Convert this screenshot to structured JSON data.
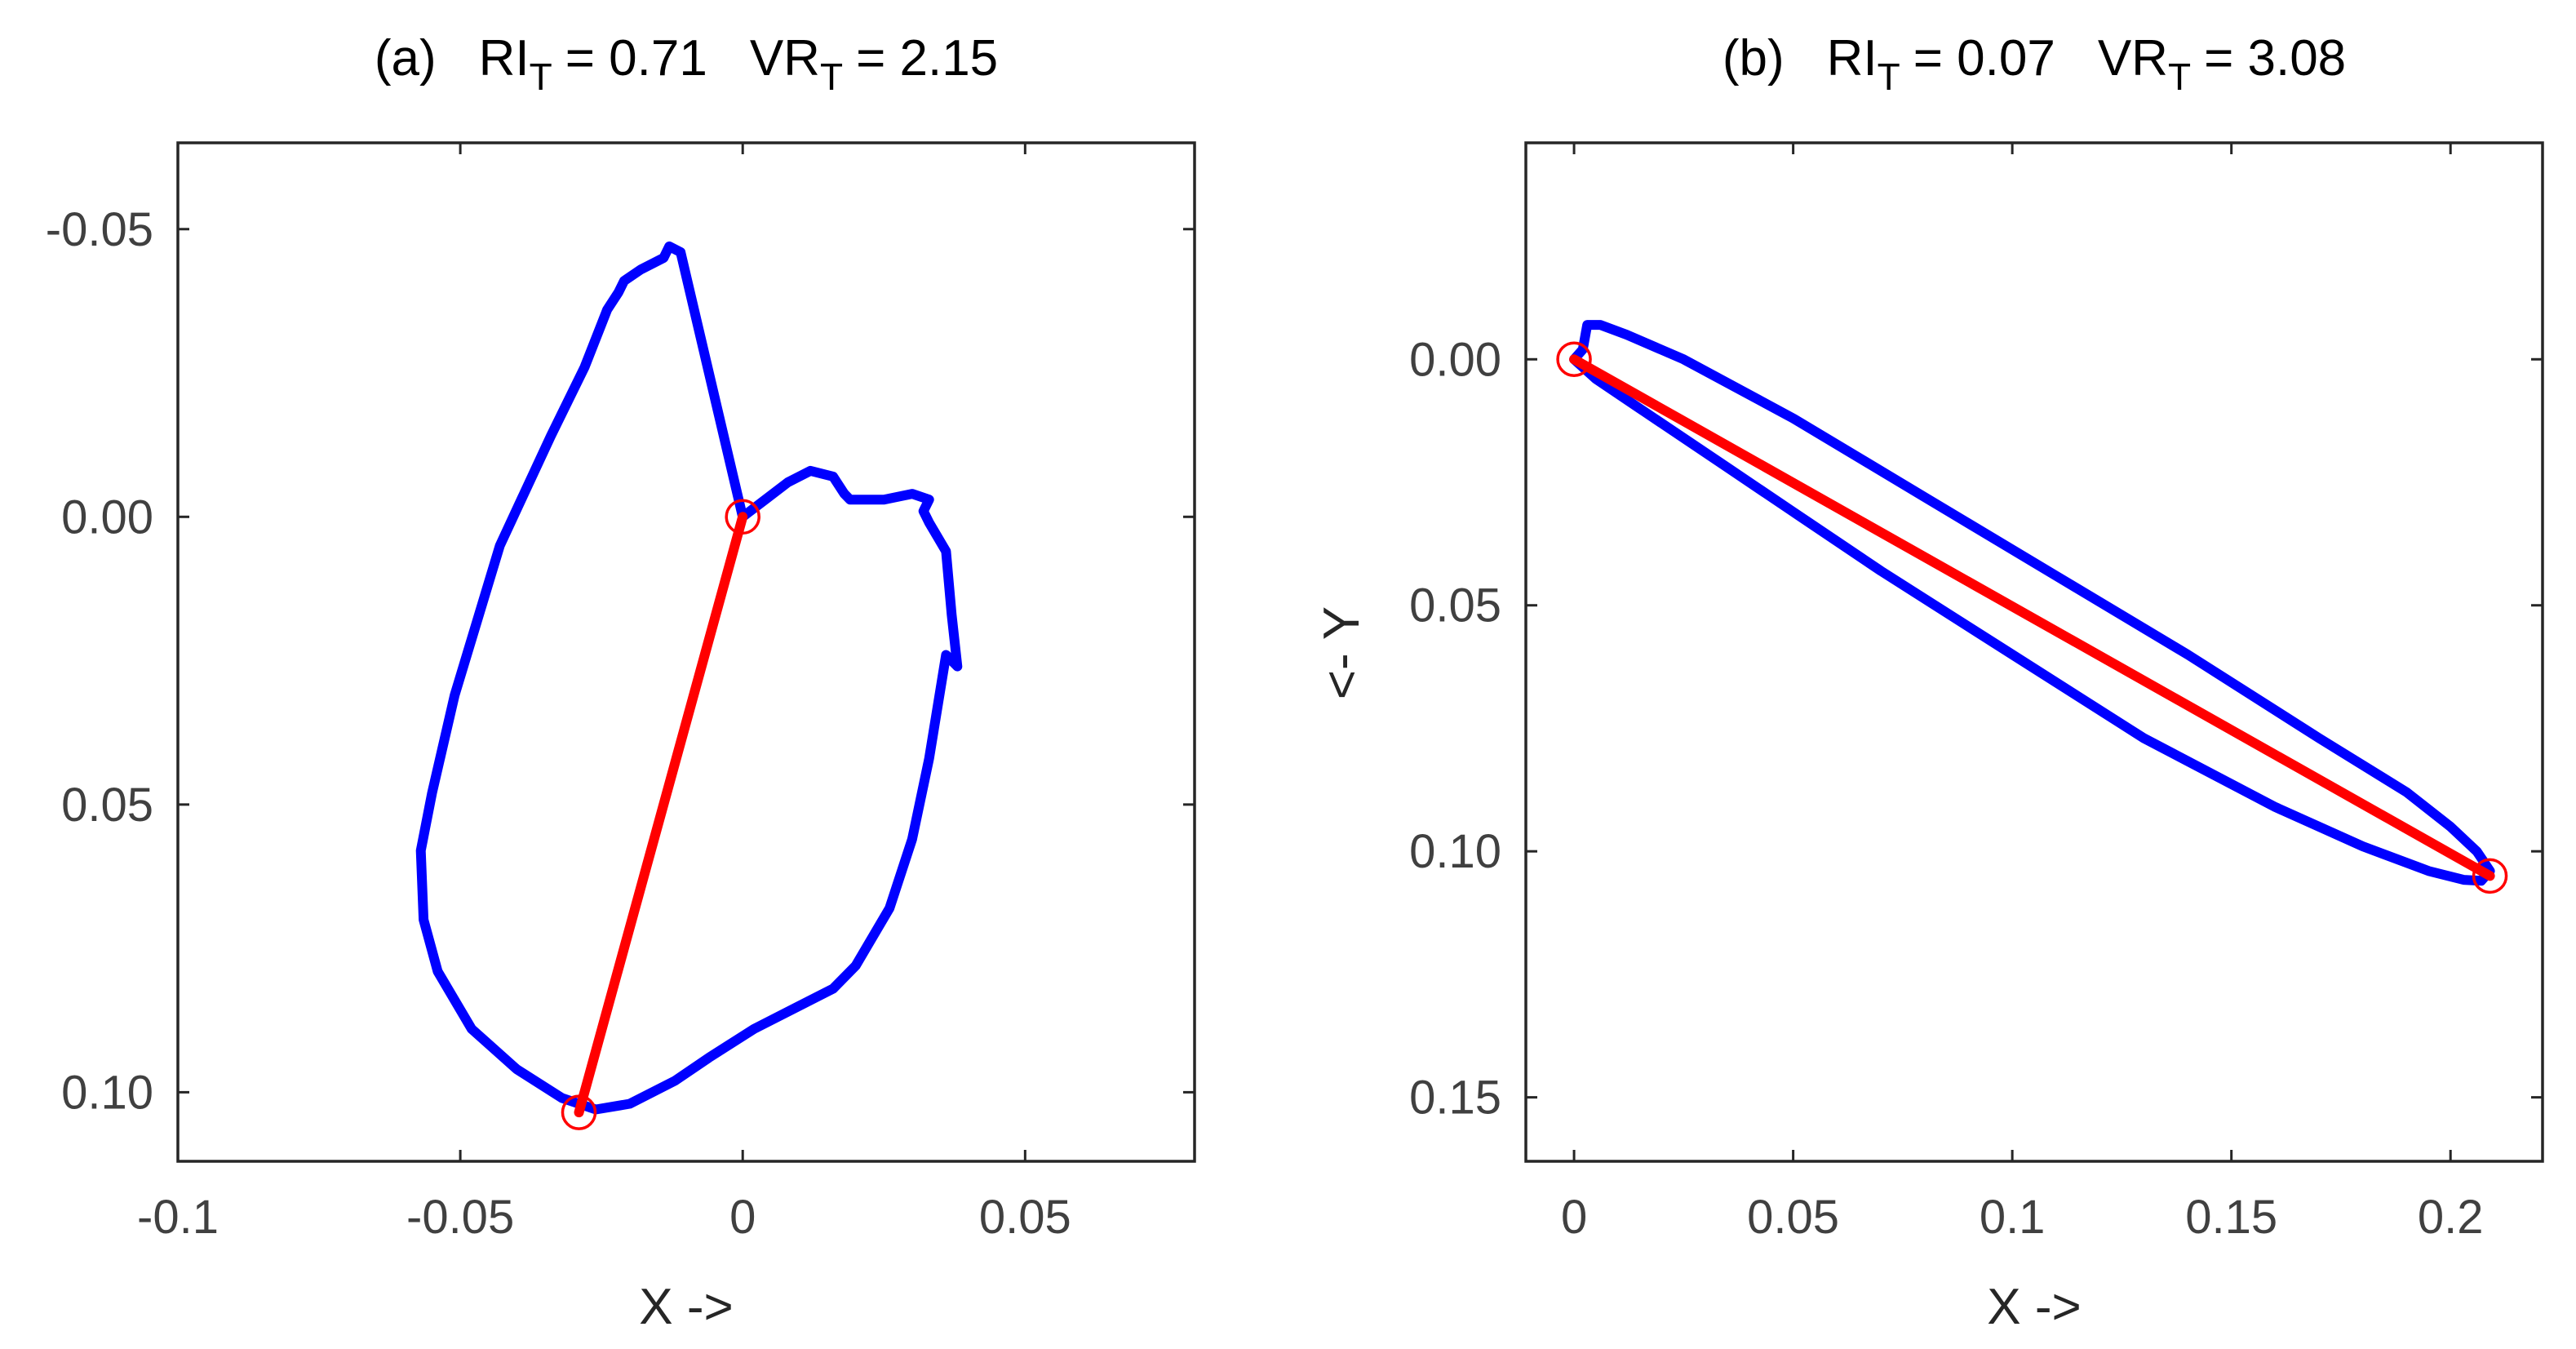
{
  "chart_data": [
    {
      "type": "line",
      "panel": "(a)",
      "title": {
        "panel_label": "(a)",
        "ri_label": "RI",
        "ri_sub": "T",
        "ri_value": "= 0.71",
        "vr_label": "VR",
        "vr_sub": "T",
        "vr_value": "= 2.15"
      },
      "xlabel": "X ->",
      "ylabel": "",
      "xlim": [
        -0.1,
        0.08
      ],
      "ylim": [
        -0.065,
        0.112
      ],
      "y_reversed": true,
      "xticks": [
        -0.1,
        -0.05,
        0,
        0.05
      ],
      "xtick_labels": [
        "-0.1",
        "-0.05",
        "0",
        "0.05"
      ],
      "yticks": [
        -0.05,
        0,
        0.05,
        0.1
      ],
      "ytick_labels": [
        "-0.05",
        "0.00",
        "0.05",
        "0.10"
      ],
      "series": [
        {
          "name": "trajectory",
          "color": "#0000ff",
          "x": [
            0.0,
            -0.011,
            -0.013,
            -0.014,
            -0.018,
            -0.021,
            -0.022,
            -0.024,
            -0.028,
            -0.034,
            -0.043,
            -0.051,
            -0.055,
            -0.057,
            -0.0565,
            -0.054,
            -0.048,
            -0.04,
            -0.032,
            -0.026,
            -0.02,
            -0.012,
            -0.006,
            0.002,
            0.01,
            0.016,
            0.02,
            0.026,
            0.03,
            0.033,
            0.035,
            0.036,
            0.038,
            0.037,
            0.036,
            0.033,
            0.032,
            0.033,
            0.03,
            0.025,
            0.021,
            0.019,
            0.018,
            0.016,
            0.012,
            0.008,
            0.004,
            0.0
          ],
          "y": [
            0.0,
            -0.046,
            -0.047,
            -0.045,
            -0.043,
            -0.041,
            -0.039,
            -0.036,
            -0.026,
            -0.014,
            0.005,
            0.031,
            0.048,
            0.058,
            0.07,
            0.079,
            0.089,
            0.096,
            0.101,
            0.103,
            0.102,
            0.098,
            0.094,
            0.089,
            0.085,
            0.082,
            0.078,
            0.068,
            0.056,
            0.042,
            0.03,
            0.024,
            0.026,
            0.017,
            0.006,
            0.001,
            -0.001,
            -0.003,
            -0.004,
            -0.003,
            -0.003,
            -0.003,
            -0.004,
            -0.007,
            -0.008,
            -0.006,
            -0.003,
            0.0
          ]
        },
        {
          "name": "resultant",
          "color": "#ff0000",
          "x": [
            0.0,
            -0.029
          ],
          "y": [
            0.0,
            0.1035
          ]
        }
      ],
      "markers": [
        {
          "x": 0.0,
          "y": 0.0,
          "color": "#ff0000"
        },
        {
          "x": -0.029,
          "y": 0.1035,
          "color": "#ff0000"
        }
      ]
    },
    {
      "type": "line",
      "panel": "(b)",
      "title": {
        "panel_label": "(b)",
        "ri_label": "RI",
        "ri_sub": "T",
        "ri_value": "= 0.07",
        "vr_label": "VR",
        "vr_sub": "T",
        "vr_value": "= 3.08"
      },
      "xlabel": "X ->",
      "ylabel": "<- Y",
      "xlim": [
        -0.011,
        0.221
      ],
      "ylim": [
        -0.044,
        0.163
      ],
      "y_reversed": true,
      "xticks": [
        0,
        0.05,
        0.1,
        0.15,
        0.2
      ],
      "xtick_labels": [
        "0",
        "0.05",
        "0.1",
        "0.15",
        "0.2"
      ],
      "yticks": [
        0,
        0.05,
        0.1,
        0.15
      ],
      "ytick_labels": [
        "0.00",
        "0.05",
        "0.10",
        "0.15"
      ],
      "series": [
        {
          "name": "trajectory",
          "color": "#0000ff",
          "x": [
            0.0,
            0.002,
            0.003,
            0.006,
            0.012,
            0.025,
            0.05,
            0.08,
            0.11,
            0.14,
            0.17,
            0.19,
            0.2,
            0.206,
            0.209,
            0.207,
            0.203,
            0.195,
            0.18,
            0.16,
            0.13,
            0.1,
            0.07,
            0.05,
            0.035,
            0.015,
            0.005,
            0.0
          ],
          "y": [
            0.0,
            -0.002,
            -0.007,
            -0.007,
            -0.005,
            0.0,
            0.012,
            0.028,
            0.044,
            0.06,
            0.077,
            0.088,
            0.095,
            0.1,
            0.104,
            0.106,
            0.1058,
            0.104,
            0.099,
            0.091,
            0.077,
            0.06,
            0.043,
            0.031,
            0.022,
            0.01,
            0.004,
            0.0
          ]
        },
        {
          "name": "resultant",
          "color": "#ff0000",
          "x": [
            0.0,
            0.209
          ],
          "y": [
            0.0,
            0.105
          ]
        }
      ],
      "markers": [
        {
          "x": 0.0,
          "y": 0.0,
          "color": "#ff0000"
        },
        {
          "x": 0.209,
          "y": 0.105,
          "color": "#ff0000"
        }
      ]
    }
  ]
}
